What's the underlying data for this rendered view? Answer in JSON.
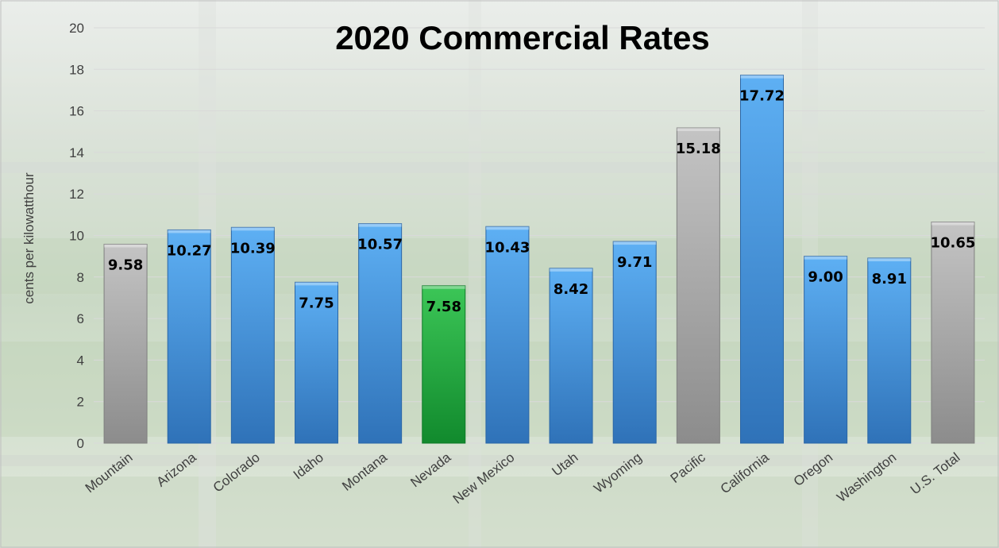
{
  "chart_data": {
    "type": "bar",
    "title": "2020 Commercial Rates",
    "xlabel": "",
    "ylabel": "cents per kilowatthour",
    "ylim": [
      0,
      20
    ],
    "yticks": [
      0,
      2,
      4,
      6,
      8,
      10,
      12,
      14,
      16,
      18,
      20
    ],
    "grid": true,
    "legend": "none",
    "categories": [
      "Mountain",
      "Arizona",
      "Colorado",
      "Idaho",
      "Montana",
      "Nevada",
      "New Mexico",
      "Utah",
      "Wyoming",
      "Pacific",
      "California",
      "Oregon",
      "Washington",
      "U.S. Total"
    ],
    "values": [
      9.58,
      10.27,
      10.39,
      7.75,
      10.57,
      7.58,
      10.43,
      8.42,
      9.71,
      15.18,
      17.72,
      9.0,
      8.91,
      10.65
    ],
    "value_labels": [
      "9.58",
      "10.27",
      "10.39",
      "7.75",
      "10.57",
      "7.58",
      "10.43",
      "8.42",
      "9.71",
      "15.18",
      "17.72",
      "9.00",
      "8.91",
      "10.65"
    ],
    "bar_groups": [
      "region",
      "state",
      "state",
      "state",
      "state",
      "highlight",
      "state",
      "state",
      "state",
      "region",
      "state",
      "state",
      "state",
      "region"
    ],
    "colors": {
      "state": "#3d8fdb",
      "region": "#a6a6a6",
      "highlight": "#1aa33a",
      "gridline": "#d9d9d9",
      "axis_text": "#404040",
      "title": "#000000",
      "labels": "#000000"
    }
  }
}
